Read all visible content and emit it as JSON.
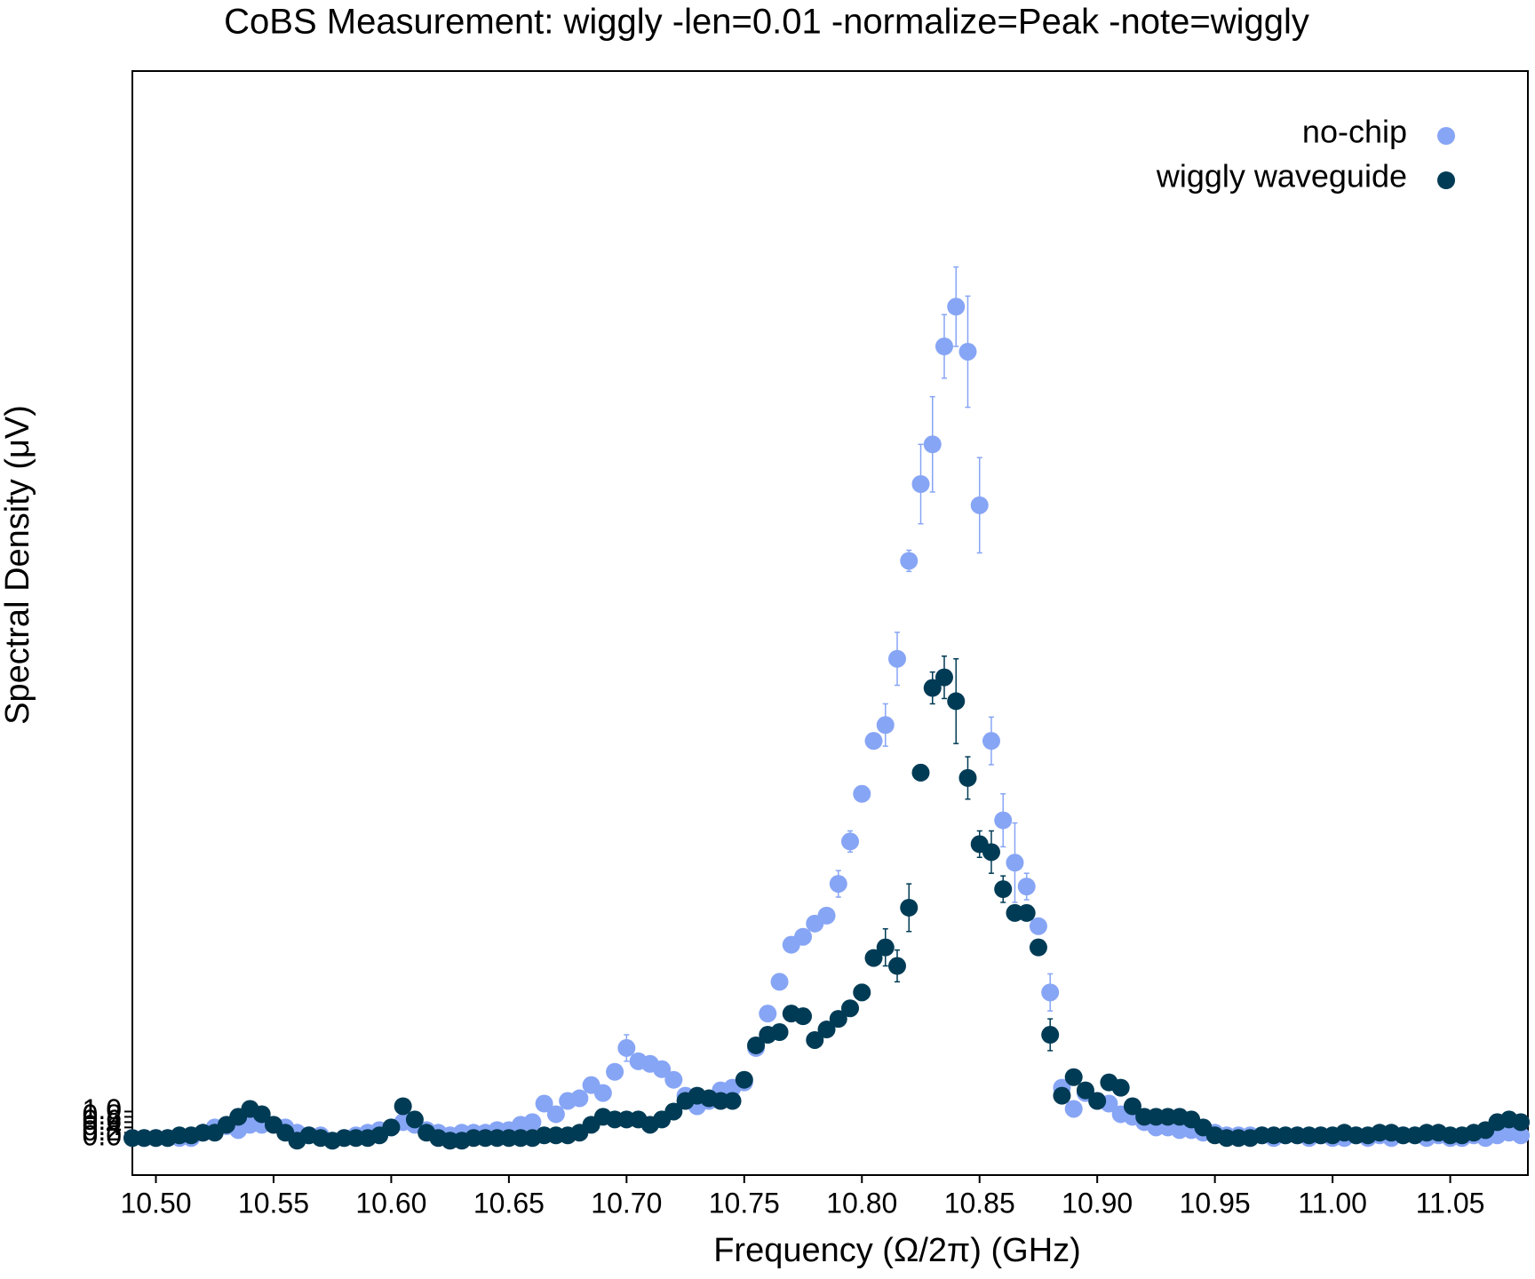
{
  "chart_data": {
    "type": "scatter",
    "title": "CoBS Measurement:  wiggly -len=0.01 -normalize=Peak -note=wiggly",
    "x_label": "Frequency (Ω/2π) (GHz)",
    "y_label": "Spectral Density (μV)",
    "xlim": [
      10.49,
      11.083
    ],
    "ylim": [
      -1.4,
      40.3
    ],
    "xticks": [
      {
        "value": 10.5,
        "label": "10.50"
      },
      10.55,
      {
        "value": 10.6,
        "label": "10.60"
      },
      10.65,
      {
        "value": 10.7,
        "label": "10.70"
      },
      10.75,
      {
        "value": 10.8,
        "label": "10.80"
      },
      10.85,
      {
        "value": 10.9,
        "label": "10.90"
      },
      10.95,
      {
        "value": 11.0,
        "label": "11.00"
      },
      11.05
    ],
    "yticks": [
      {
        "value": 0,
        "label": "0.0"
      },
      0.2,
      0.4,
      0.6,
      0.8,
      {
        "value": 1,
        "label": "1.0"
      }
    ],
    "legend": "upper right",
    "x": [
      10.49,
      10.495,
      10.5,
      10.505,
      10.51,
      10.515,
      10.52,
      10.525,
      10.53,
      10.535,
      10.54,
      10.545,
      10.55,
      10.555,
      10.56,
      10.565,
      10.57,
      10.575,
      10.58,
      10.585,
      10.59,
      10.595,
      10.6,
      10.605,
      10.61,
      10.615,
      10.62,
      10.625,
      10.63,
      10.635,
      10.64,
      10.645,
      10.65,
      10.655,
      10.66,
      10.665,
      10.67,
      10.675,
      10.68,
      10.685,
      10.69,
      10.695,
      10.7,
      10.705,
      10.71,
      10.715,
      10.72,
      10.725,
      10.73,
      10.735,
      10.74,
      10.745,
      10.75,
      10.755,
      10.76,
      10.765,
      10.77,
      10.775,
      10.78,
      10.785,
      10.79,
      10.795,
      10.8,
      10.805,
      10.81,
      10.815,
      10.82,
      10.825,
      10.83,
      10.835,
      10.84,
      10.845,
      10.85,
      10.855,
      10.86,
      10.865,
      10.87,
      10.875,
      10.88,
      10.885,
      10.89,
      10.895,
      10.9,
      10.905,
      10.91,
      10.915,
      10.92,
      10.925,
      10.93,
      10.935,
      10.94,
      10.945,
      10.95,
      10.955,
      10.96,
      10.965,
      10.97,
      10.975,
      10.98,
      10.985,
      10.99,
      10.995,
      11.0,
      11.005,
      11.01,
      11.015,
      11.02,
      11.025,
      11.03,
      11.035,
      11.04,
      11.045,
      11.05,
      11.055,
      11.06,
      11.065,
      11.07,
      11.075,
      11.08
    ],
    "series": [
      {
        "name": "no-chip",
        "color": "#87a5f5",
        "values": [
          0,
          0,
          0,
          0,
          0,
          0,
          0.2,
          0.4,
          0.45,
          0.3,
          0.5,
          0.5,
          0.5,
          0.4,
          0.2,
          0.1,
          0.1,
          -0.1,
          0,
          0.1,
          0.2,
          0.3,
          0.4,
          0.6,
          0.5,
          0.3,
          0.2,
          0.1,
          0.2,
          0.2,
          0.2,
          0.3,
          0.3,
          0.5,
          0.6,
          1.3,
          0.9,
          1.4,
          1.5,
          2.0,
          1.7,
          2.5,
          3.4,
          2.9,
          2.8,
          2.6,
          2.2,
          1.6,
          1.2,
          1.4,
          1.8,
          1.9,
          2.1,
          3.4,
          4.7,
          5.9,
          7.3,
          7.6,
          8.1,
          8.4,
          9.6,
          11.2,
          13.0,
          15.0,
          15.6,
          18.1,
          21.8,
          24.7,
          26.2,
          29.9,
          31.4,
          29.7,
          23.9,
          15.0,
          12.0,
          10.4,
          9.5,
          8.0,
          5.5,
          1.9,
          1.1,
          1.7,
          1.4,
          1.3,
          0.9,
          0.8,
          0.6,
          0.4,
          0.4,
          0.3,
          0.3,
          0.2,
          0.2,
          0.1,
          0.1,
          0.1,
          0.1,
          0,
          0.1,
          0.1,
          0,
          0.1,
          0,
          0,
          0.1,
          0,
          0.1,
          0,
          0.1,
          0.1,
          0,
          0.1,
          0,
          0,
          0.1,
          0,
          0.1,
          0.2,
          0.1
        ],
        "errors": [
          0.1,
          0.1,
          0.1,
          0.1,
          0.1,
          0.1,
          0.1,
          0.1,
          0.1,
          0.1,
          0.1,
          0.1,
          0.1,
          0.1,
          0.1,
          0.1,
          0.1,
          0.1,
          0.1,
          0.1,
          0.1,
          0.1,
          0.1,
          0.1,
          0.1,
          0.1,
          0.1,
          0.1,
          0.1,
          0.1,
          0.1,
          0.1,
          0.1,
          0.1,
          0.1,
          0.1,
          0.1,
          0.1,
          0.1,
          0.1,
          0.1,
          0.1,
          0.5,
          0.1,
          0.3,
          0.1,
          0.1,
          0.1,
          0.1,
          0.1,
          0.1,
          0.1,
          0.1,
          0.1,
          0.1,
          0.3,
          0.2,
          0.3,
          0.1,
          0.1,
          0.5,
          0.4,
          0.3,
          0.3,
          0.8,
          1.0,
          0.4,
          1.5,
          1.8,
          1.2,
          1.5,
          2.1,
          1.8,
          0.9,
          1.0,
          1.5,
          0.5,
          0.3,
          0.7,
          0.1,
          0.1,
          0.1,
          0.1,
          0.1,
          0.1,
          0.1,
          0.1,
          0.1,
          0.1,
          0.1,
          0.1,
          0.1,
          0.1,
          0.1,
          0.1,
          0.1,
          0.1,
          0.1,
          0.1,
          0.1,
          0.1,
          0.1,
          0.1,
          0.1,
          0.1,
          0.1,
          0.1,
          0.1,
          0.1,
          0.1,
          0.1,
          0.1,
          0.1,
          0.1,
          0.1,
          0.1,
          0.1,
          0.1,
          0.1
        ]
      },
      {
        "name": "wiggly waveguide",
        "color": "#003b55",
        "values": [
          0,
          0,
          0,
          0,
          0.1,
          0.1,
          0.2,
          0.2,
          0.5,
          0.8,
          1.1,
          0.9,
          0.5,
          0.2,
          -0.1,
          0.1,
          0,
          -0.1,
          0,
          0,
          0,
          0.1,
          0.4,
          1.2,
          0.7,
          0.2,
          0,
          -0.1,
          -0.1,
          0,
          0,
          0,
          0,
          0,
          0,
          0.1,
          0.1,
          0.1,
          0.2,
          0.5,
          0.8,
          0.7,
          0.7,
          0.7,
          0.5,
          0.7,
          1.0,
          1.4,
          1.6,
          1.5,
          1.4,
          1.4,
          2.2,
          3.5,
          3.9,
          4.0,
          4.7,
          4.6,
          3.7,
          4.1,
          4.5,
          4.9,
          5.5,
          6.8,
          7.2,
          6.5,
          8.7,
          13.8,
          17.0,
          17.4,
          16.5,
          13.6,
          11.1,
          10.8,
          9.4,
          8.5,
          8.5,
          7.2,
          3.9,
          1.6,
          2.3,
          1.8,
          1.4,
          2.1,
          1.9,
          1.2,
          0.8,
          0.8,
          0.8,
          0.8,
          0.7,
          0.4,
          0.1,
          0,
          0,
          0,
          0.1,
          0.1,
          0.1,
          0.1,
          0.1,
          0.1,
          0.1,
          0.2,
          0.1,
          0.1,
          0.2,
          0.2,
          0.1,
          0.1,
          0.2,
          0.2,
          0.1,
          0.1,
          0.2,
          0.3,
          0.6,
          0.7,
          0.6
        ],
        "errors": [
          0.1,
          0.1,
          0.1,
          0.1,
          0.1,
          0.1,
          0.1,
          0.1,
          0.1,
          0.1,
          0.1,
          0.1,
          0.1,
          0.1,
          0.1,
          0.1,
          0.1,
          0.1,
          0.1,
          0.1,
          0.1,
          0.1,
          0.1,
          0.1,
          0.1,
          0.1,
          0.1,
          0.1,
          0.1,
          0.1,
          0.1,
          0.1,
          0.1,
          0.1,
          0.1,
          0.1,
          0.1,
          0.1,
          0.1,
          0.1,
          0.1,
          0.1,
          0.1,
          0.1,
          0.1,
          0.1,
          0.1,
          0.1,
          0.1,
          0.1,
          0.1,
          0.1,
          0.1,
          0.1,
          0.1,
          0.1,
          0.1,
          0.1,
          0.1,
          0.1,
          0.1,
          0.2,
          0.3,
          0.3,
          0.7,
          0.6,
          0.9,
          0.3,
          0.6,
          0.8,
          1.6,
          0.8,
          0.5,
          0.8,
          0.5,
          0.1,
          0.2,
          0.1,
          0.6,
          0.1,
          0.1,
          0.1,
          0.1,
          0.1,
          0.1,
          0.1,
          0.1,
          0.1,
          0.1,
          0.1,
          0.1,
          0.1,
          0.1,
          0.1,
          0.1,
          0.1,
          0.1,
          0.1,
          0.1,
          0.1,
          0.1,
          0.1,
          0.1,
          0.1,
          0.1,
          0.1,
          0.1,
          0.1,
          0.1,
          0.1,
          0.1,
          0.1,
          0.1,
          0.1,
          0.1,
          0.1,
          0.1,
          0.1,
          0.1
        ]
      }
    ]
  }
}
